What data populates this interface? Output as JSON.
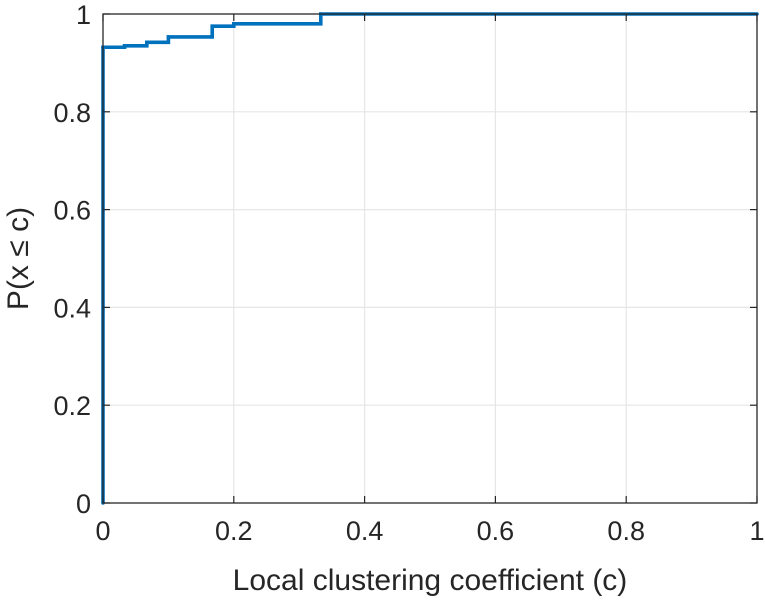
{
  "chart_data": {
    "type": "line",
    "subtype": "empirical-cdf-step",
    "title": "",
    "xlabel": "Local clustering coefficient (c)",
    "ylabel": "P(x ≤ c)",
    "xlim": [
      0,
      1
    ],
    "ylim": [
      0,
      1
    ],
    "x_ticks": [
      0,
      0.2,
      0.4,
      0.6,
      0.8,
      1
    ],
    "x_tick_labels": [
      "0",
      "0.2",
      "0.4",
      "0.6",
      "0.8",
      "1"
    ],
    "y_ticks": [
      0,
      0.2,
      0.4,
      0.6,
      0.8,
      1
    ],
    "y_tick_labels": [
      "0",
      "0.2",
      "0.4",
      "0.6",
      "0.8",
      "1"
    ],
    "grid": true,
    "legend": "none",
    "series": [
      {
        "color": "#0072BD",
        "x": [
          0,
          0,
          0.033,
          0.067,
          0.1,
          0.167,
          0.2,
          0.333,
          1
        ],
        "y": [
          0,
          0.932,
          0.935,
          0.942,
          0.953,
          0.975,
          0.98,
          1.0,
          1.0
        ]
      }
    ],
    "colors": {
      "line": "#0072BD",
      "grid": "#e6e6e6",
      "axes": "#262626"
    }
  }
}
